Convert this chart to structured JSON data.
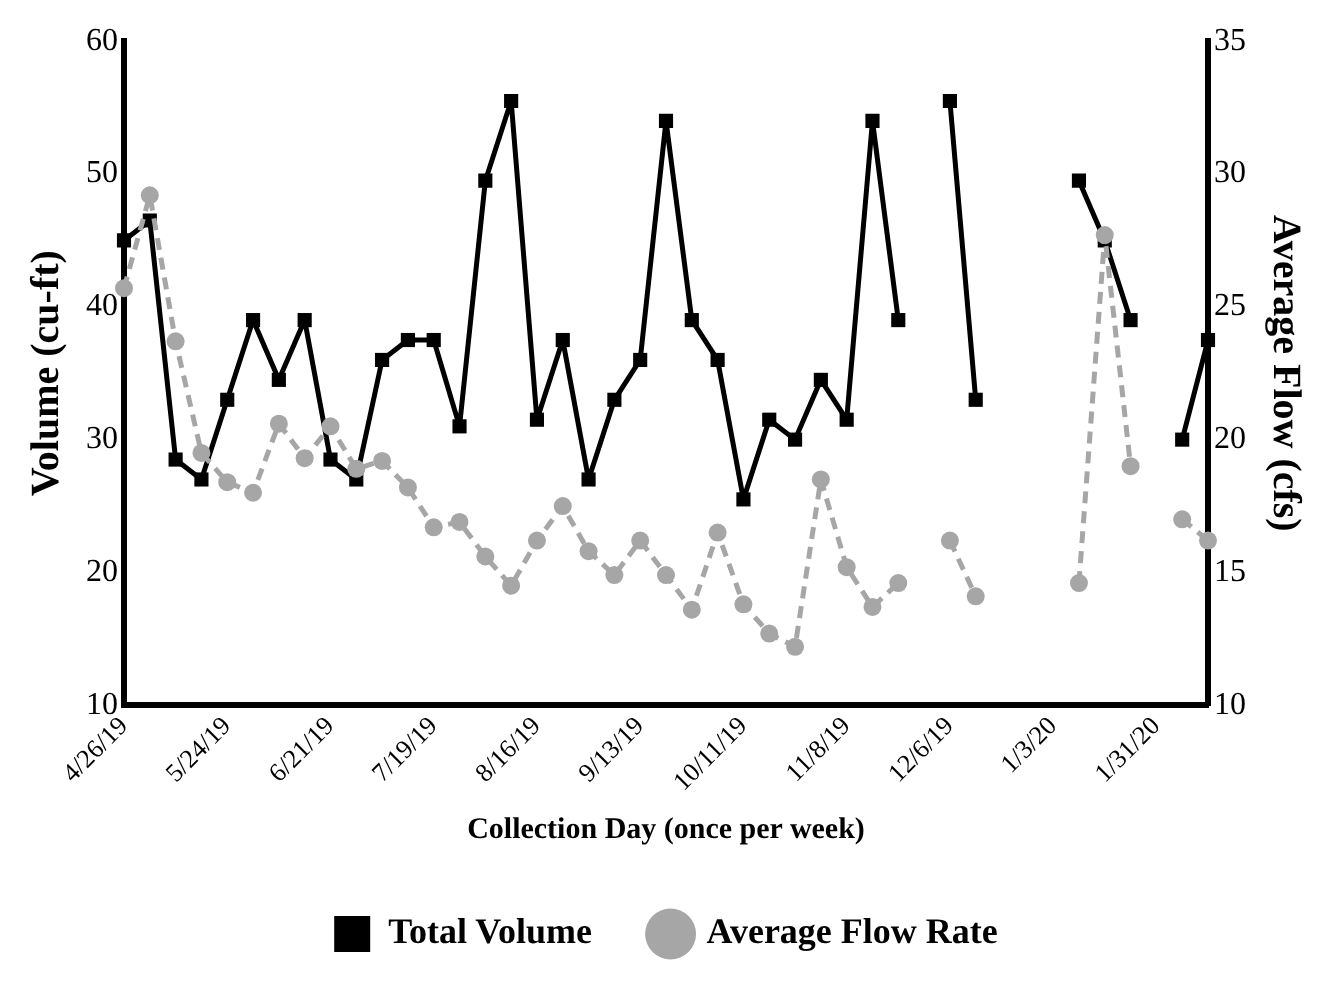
{
  "chart_data": {
    "type": "line",
    "xlabel": "Collection Day (once per week)",
    "ylabel": "Volume (cu-ft)",
    "y2label": "Average Flow (cfs)",
    "categories": [
      "4/26/19",
      null,
      null,
      null,
      "5/24/19",
      null,
      null,
      null,
      "6/21/19",
      null,
      null,
      null,
      "7/19/19",
      null,
      null,
      null,
      "8/16/19",
      null,
      null,
      null,
      "9/13/19",
      null,
      null,
      null,
      "10/11/19",
      null,
      null,
      null,
      "11/8/19",
      null,
      null,
      null,
      "12/6/19",
      null,
      null,
      null,
      "1/3/20",
      null,
      null,
      null,
      "1/31/20",
      null,
      null
    ],
    "series": [
      {
        "name": "Total Volume",
        "color": "#000000",
        "marker": "square",
        "line_style": "solid",
        "values": [
          45,
          46.5,
          28.5,
          27,
          33,
          39,
          34.5,
          39,
          28.5,
          27,
          36,
          37.5,
          37.5,
          31,
          49.5,
          55.5,
          31.5,
          37.5,
          27,
          33,
          36,
          54,
          39,
          36,
          25.5,
          31.5,
          30,
          34.5,
          31.5,
          54,
          39,
          null,
          55.5,
          33,
          null,
          null,
          null,
          49.5,
          45,
          39,
          null,
          30,
          37.5
        ]
      },
      {
        "name": "Average Flow Rate",
        "color": "#a6a6a6",
        "marker": "circle",
        "line_style": "dashed",
        "axis": "y2",
        "values": [
          25.7,
          29.2,
          23.7,
          19.5,
          18.4,
          18,
          20.6,
          19.3,
          20.5,
          18.9,
          19.2,
          18.2,
          16.7,
          16.9,
          15.6,
          14.5,
          16.2,
          17.5,
          15.8,
          14.9,
          16.2,
          14.9,
          13.6,
          16.5,
          13.8,
          12.7,
          12.2,
          18.5,
          15.2,
          13.7,
          14.6,
          null,
          16.2,
          14.1,
          null,
          null,
          null,
          14.6,
          27.7,
          19,
          null,
          17,
          16.2
        ]
      }
    ],
    "ylim": [
      10,
      60
    ],
    "yticks": [
      10,
      20,
      30,
      40,
      50,
      60
    ],
    "y2lim": [
      10,
      35
    ],
    "y2ticks": [
      10,
      15,
      20,
      25,
      30,
      35
    ],
    "grid": false,
    "legend": "bottom"
  }
}
